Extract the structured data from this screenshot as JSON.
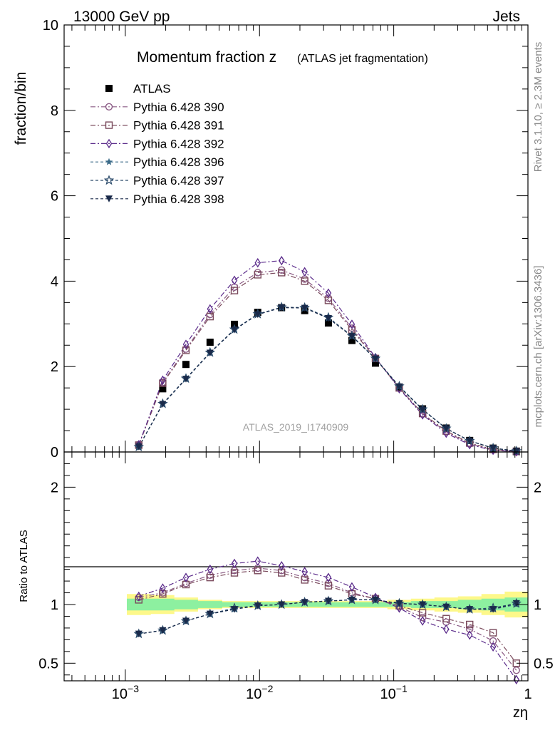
{
  "header": {
    "left": "13000 GeV pp",
    "right": "Jets"
  },
  "side_text": {
    "rivet": "Rivet 3.1.10, ≥ 2.3M events",
    "mcplots": "mcplots.cern.ch [arXiv:1306.3436]"
  },
  "chart_data": {
    "type": "scatter",
    "title_main": "Momentum fraction z",
    "title_sub": "(ATLAS jet fragmentation)",
    "watermark": "ATLAS_2019_I1740909",
    "xlabel": "zη",
    "ylabel_top": "fraction/bin",
    "ylabel_bottom": "Ratio to ATLAS",
    "x_scale": "log",
    "xlim": [
      0.00035,
      1.0
    ],
    "ylim_top": [
      0,
      10
    ],
    "ylim_bottom": [
      0.35,
      2.3
    ],
    "x_ticks": [
      {
        "value": 0.001,
        "base": "10",
        "exp": "−3"
      },
      {
        "value": 0.01,
        "base": "10",
        "exp": "−2"
      },
      {
        "value": 0.1,
        "base": "10",
        "exp": "−1"
      },
      {
        "value": 1,
        "base": "1",
        "exp": ""
      }
    ],
    "y_ticks_top": [
      "0",
      "2",
      "4",
      "6",
      "8",
      "10"
    ],
    "y_ticks_bottom": [
      "0.5",
      "1",
      "2"
    ],
    "x": [
      0.00126,
      0.0019,
      0.00283,
      0.00428,
      0.0065,
      0.0097,
      0.0146,
      0.0217,
      0.0326,
      0.0488,
      0.0731,
      0.11,
      0.164,
      0.246,
      0.368,
      0.55,
      0.82
    ],
    "reference": {
      "name": "ATLAS",
      "values": [
        0.16,
        1.48,
        2.05,
        2.57,
        2.99,
        3.27,
        3.38,
        3.31,
        3.02,
        2.61,
        2.08,
        1.52,
        1.01,
        0.56,
        0.27,
        0.09,
        0.02
      ]
    },
    "band_inner": [
      0.05,
      0.05,
      0.04,
      0.03,
      0.02,
      0.02,
      0.02,
      0.02,
      0.02,
      0.02,
      0.02,
      0.02,
      0.03,
      0.03,
      0.04,
      0.05,
      0.06
    ],
    "band_outer": [
      0.09,
      0.08,
      0.06,
      0.04,
      0.03,
      0.03,
      0.03,
      0.03,
      0.03,
      0.03,
      0.03,
      0.04,
      0.05,
      0.06,
      0.07,
      0.09,
      0.11
    ],
    "series": [
      {
        "name": "Pythia 6.428 390",
        "color": "#8a5a84",
        "marker": "circle-open",
        "dash": "dashdot",
        "values": [
          0.17,
          1.63,
          2.41,
          3.22,
          3.86,
          4.2,
          4.26,
          4.05,
          3.6,
          2.9,
          2.2,
          1.5,
          0.89,
          0.47,
          0.19,
          0.05,
          0.008
        ],
        "ratio": [
          1.06,
          1.1,
          1.18,
          1.25,
          1.29,
          1.31,
          1.29,
          1.23,
          1.18,
          1.1,
          1.05,
          0.98,
          0.89,
          0.85,
          0.79,
          0.69,
          0.44
        ]
      },
      {
        "name": "Pythia 6.428 391",
        "color": "#7a4a5c",
        "marker": "square-open",
        "dash": "dashdot",
        "values": [
          0.16,
          1.61,
          2.38,
          3.17,
          3.78,
          4.15,
          4.2,
          4.0,
          3.55,
          2.86,
          2.19,
          1.5,
          0.9,
          0.49,
          0.21,
          0.06,
          0.01
        ],
        "ratio": [
          1.04,
          1.09,
          1.17,
          1.23,
          1.27,
          1.29,
          1.27,
          1.21,
          1.16,
          1.09,
          1.05,
          0.99,
          0.93,
          0.88,
          0.83,
          0.76,
          0.5
        ]
      },
      {
        "name": "Pythia 6.428 392",
        "color": "#5a2a8a",
        "marker": "diamond-open",
        "dash": "dashdot",
        "values": [
          0.17,
          1.68,
          2.52,
          3.35,
          4.02,
          4.43,
          4.48,
          4.22,
          3.72,
          2.99,
          2.21,
          1.48,
          0.87,
          0.44,
          0.17,
          0.04,
          0.006
        ],
        "ratio": [
          1.07,
          1.14,
          1.23,
          1.3,
          1.35,
          1.37,
          1.33,
          1.28,
          1.23,
          1.15,
          1.06,
          0.97,
          0.86,
          0.79,
          0.74,
          0.64,
          0.36
        ]
      },
      {
        "name": "Pythia 6.428 396",
        "color": "#3a6a88",
        "marker": "star-solid",
        "dash": "dashed",
        "values": [
          0.12,
          1.12,
          1.71,
          2.32,
          2.86,
          3.22,
          3.38,
          3.37,
          3.14,
          2.71,
          2.18,
          1.53,
          0.99,
          0.55,
          0.26,
          0.09,
          0.02
        ],
        "ratio": [
          0.75,
          0.78,
          0.86,
          0.92,
          0.96,
          0.99,
          1.0,
          1.02,
          1.03,
          1.04,
          1.04,
          1.01,
          1.0,
          0.98,
          0.96,
          0.96,
          1.0
        ]
      },
      {
        "name": "Pythia 6.428 397",
        "color": "#2a4a6a",
        "marker": "star-open",
        "dash": "dashed",
        "values": [
          0.12,
          1.13,
          1.72,
          2.33,
          2.87,
          3.23,
          3.39,
          3.38,
          3.15,
          2.72,
          2.19,
          1.54,
          1.0,
          0.55,
          0.26,
          0.09,
          0.021
        ],
        "ratio": [
          0.75,
          0.78,
          0.86,
          0.92,
          0.97,
          0.99,
          1.0,
          1.02,
          1.03,
          1.04,
          1.04,
          1.01,
          1.0,
          0.98,
          0.96,
          0.97,
          1.01
        ]
      },
      {
        "name": "Pythia 6.428 398",
        "color": "#1a2a4a",
        "marker": "triangle-down",
        "dash": "dashed",
        "values": [
          0.12,
          1.12,
          1.71,
          2.32,
          2.86,
          3.22,
          3.38,
          3.37,
          3.13,
          2.71,
          2.18,
          1.53,
          0.99,
          0.55,
          0.26,
          0.09,
          0.021
        ],
        "ratio": [
          0.75,
          0.78,
          0.86,
          0.92,
          0.96,
          0.99,
          1.0,
          1.02,
          1.03,
          1.04,
          1.04,
          1.01,
          1.0,
          0.98,
          0.96,
          0.96,
          1.01
        ]
      }
    ]
  }
}
